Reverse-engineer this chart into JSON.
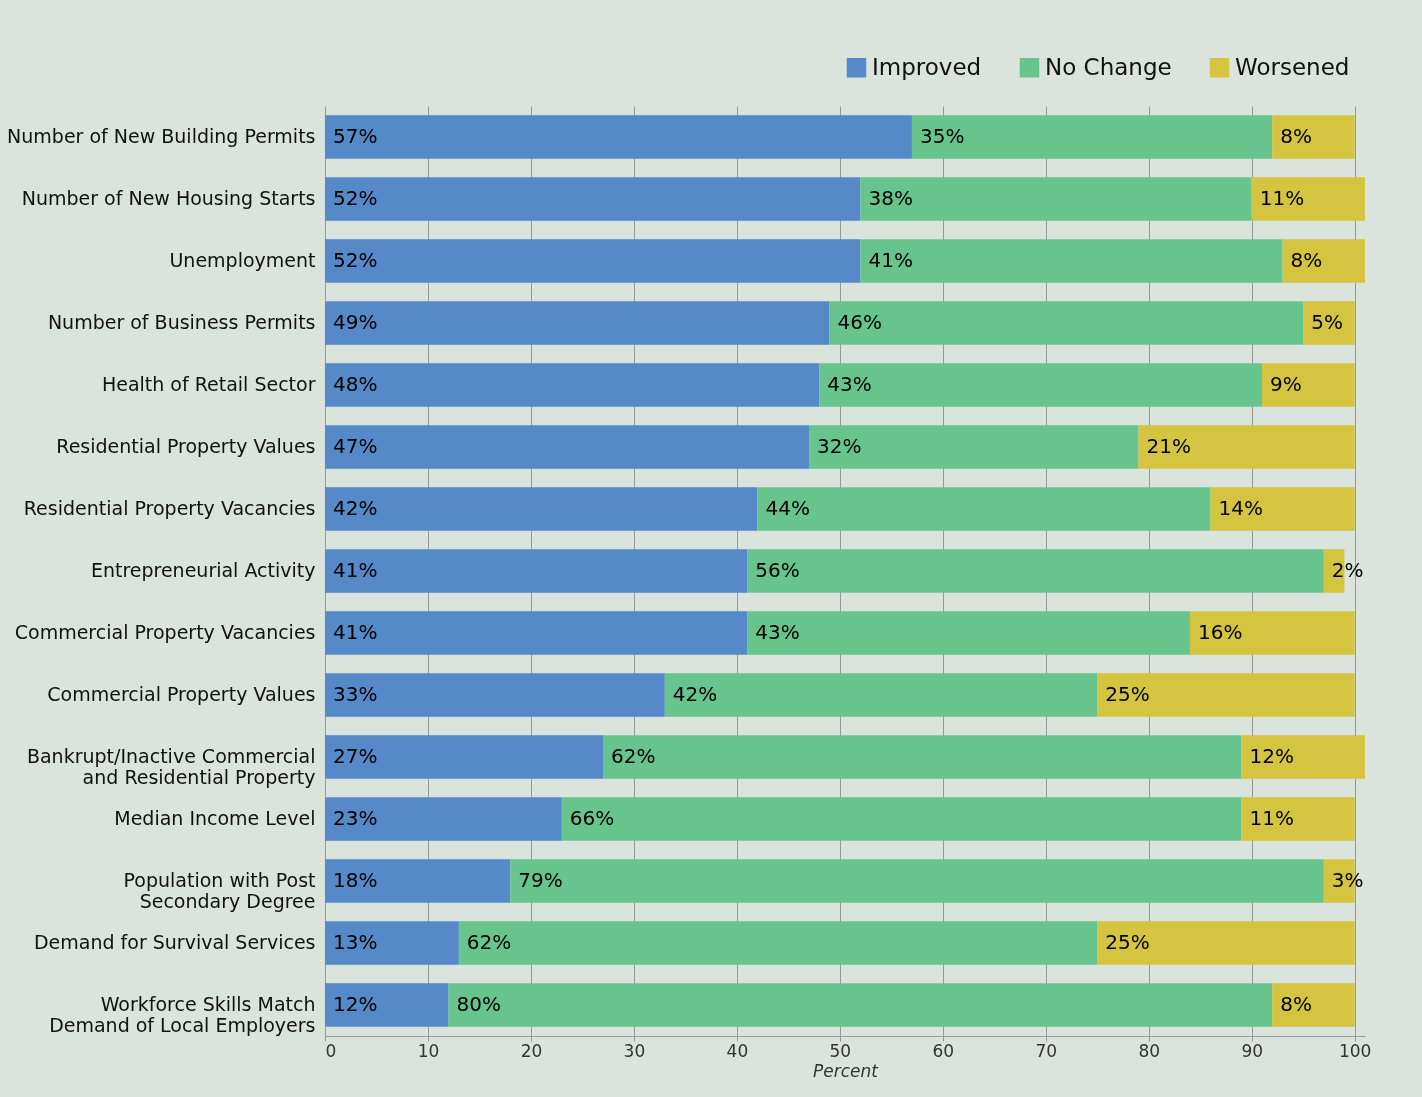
{
  "chart_data": {
    "type": "bar",
    "orientation": "horizontal",
    "stacked": true,
    "xlabel": "Percent",
    "xlim": [
      0,
      101
    ],
    "xticks": [
      0,
      10,
      20,
      30,
      40,
      50,
      60,
      70,
      80,
      90,
      100
    ],
    "grid": "x",
    "legend": "top right",
    "categories": [
      "Number of New Building Permits",
      "Number of New Housing Starts",
      "Unemployment",
      "Number of Business Permits",
      "Health of Retail Sector",
      "Residential Property Values",
      "Residential Property Vacancies",
      "Entrepreneurial Activity",
      "Commercial Property Vacancies",
      "Commercial Property Values",
      "Bankrupt/Inactive Commercial and Residential Property",
      "Median Income Level",
      "Population with Post Secondary Degree",
      "Demand for Survival Services",
      "Workforce Skills Match Demand of Local Employers"
    ],
    "series": [
      {
        "name": "Improved",
        "color": "#5589c8",
        "values": [
          57,
          52,
          52,
          49,
          48,
          47,
          42,
          41,
          41,
          33,
          27,
          23,
          18,
          13,
          12
        ],
        "value_labels": [
          "57%",
          "52%",
          "52%",
          "49%",
          "48%",
          "47%",
          "42%",
          "41%",
          "41%",
          "33%",
          "27%",
          "23%",
          "18%",
          "13%",
          "12%"
        ]
      },
      {
        "name": "No Change",
        "color": "#68c48d",
        "values": [
          35,
          38,
          41,
          46,
          43,
          32,
          44,
          56,
          43,
          42,
          62,
          66,
          79,
          62,
          80
        ],
        "value_labels": [
          "35%",
          "38%",
          "41%",
          "46%",
          "43%",
          "32%",
          "44%",
          "56%",
          "43%",
          "42%",
          "62%",
          "66%",
          "79%",
          "62%",
          "80%"
        ]
      },
      {
        "name": "Worsened",
        "color": "#d4c43f",
        "values": [
          8,
          11,
          8,
          5,
          9,
          21,
          14,
          2,
          16,
          25,
          12,
          11,
          3,
          25,
          8
        ],
        "value_labels": [
          "8%",
          "11%",
          "8%",
          "5%",
          "9%",
          "21%",
          "14%",
          "2%",
          "16%",
          "25%",
          "12%",
          "11%",
          "3%",
          "25%",
          "8%"
        ]
      }
    ]
  }
}
